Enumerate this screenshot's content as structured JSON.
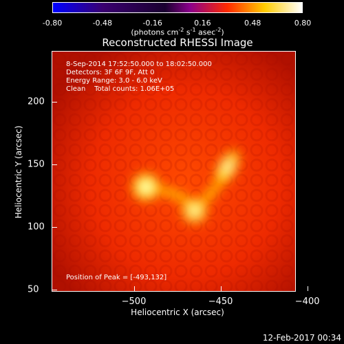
{
  "colorbar": {
    "ticks": [
      "-0.80",
      "-0.48",
      "-0.16",
      "0.16",
      "0.48",
      "0.80"
    ],
    "units_main": "(photons cm",
    "units_sup1": "-2",
    "units_mid1": " s",
    "units_sup2": "-1",
    "units_mid2": " asec",
    "units_sup3": "-2",
    "units_end": ")"
  },
  "chart_data": {
    "type": "heatmap",
    "title": "Reconstructed RHESSI Image",
    "xlabel": "Heliocentric X (arcsec)",
    "ylabel": "Heliocentric Y (arcsec)",
    "x_ticks": [
      "-500",
      "-450",
      "-400"
    ],
    "y_ticks": [
      "50",
      "100",
      "150",
      "200"
    ],
    "xlim": [
      -547,
      -407
    ],
    "ylim": [
      49,
      240
    ],
    "color_range": [
      -0.8,
      0.8
    ],
    "colormap": [
      "#0000ff",
      "#3a0070",
      "#000000",
      "#8b008b",
      "#ff3300",
      "#ffff00",
      "#ffffff"
    ],
    "sources": [
      {
        "x": -493,
        "y": 132,
        "intensity": 0.8
      },
      {
        "x": -446,
        "y": 148,
        "intensity": 0.55
      },
      {
        "x": -465,
        "y": 113,
        "intensity": 0.6
      }
    ],
    "annotations": {
      "line1": "8-Sep-2014 17:52:50.000 to 18:02:50.000",
      "line2": "Detectors: 3F 6F 9F, Att 0",
      "line3": "Energy Range: 3.0 - 6.0 keV",
      "line4": "Clean    Total counts: 1.06E+05",
      "peak": "Position of Peak = [-493,132]"
    }
  },
  "footer": {
    "timestamp": "12-Feb-2017 00:34"
  }
}
